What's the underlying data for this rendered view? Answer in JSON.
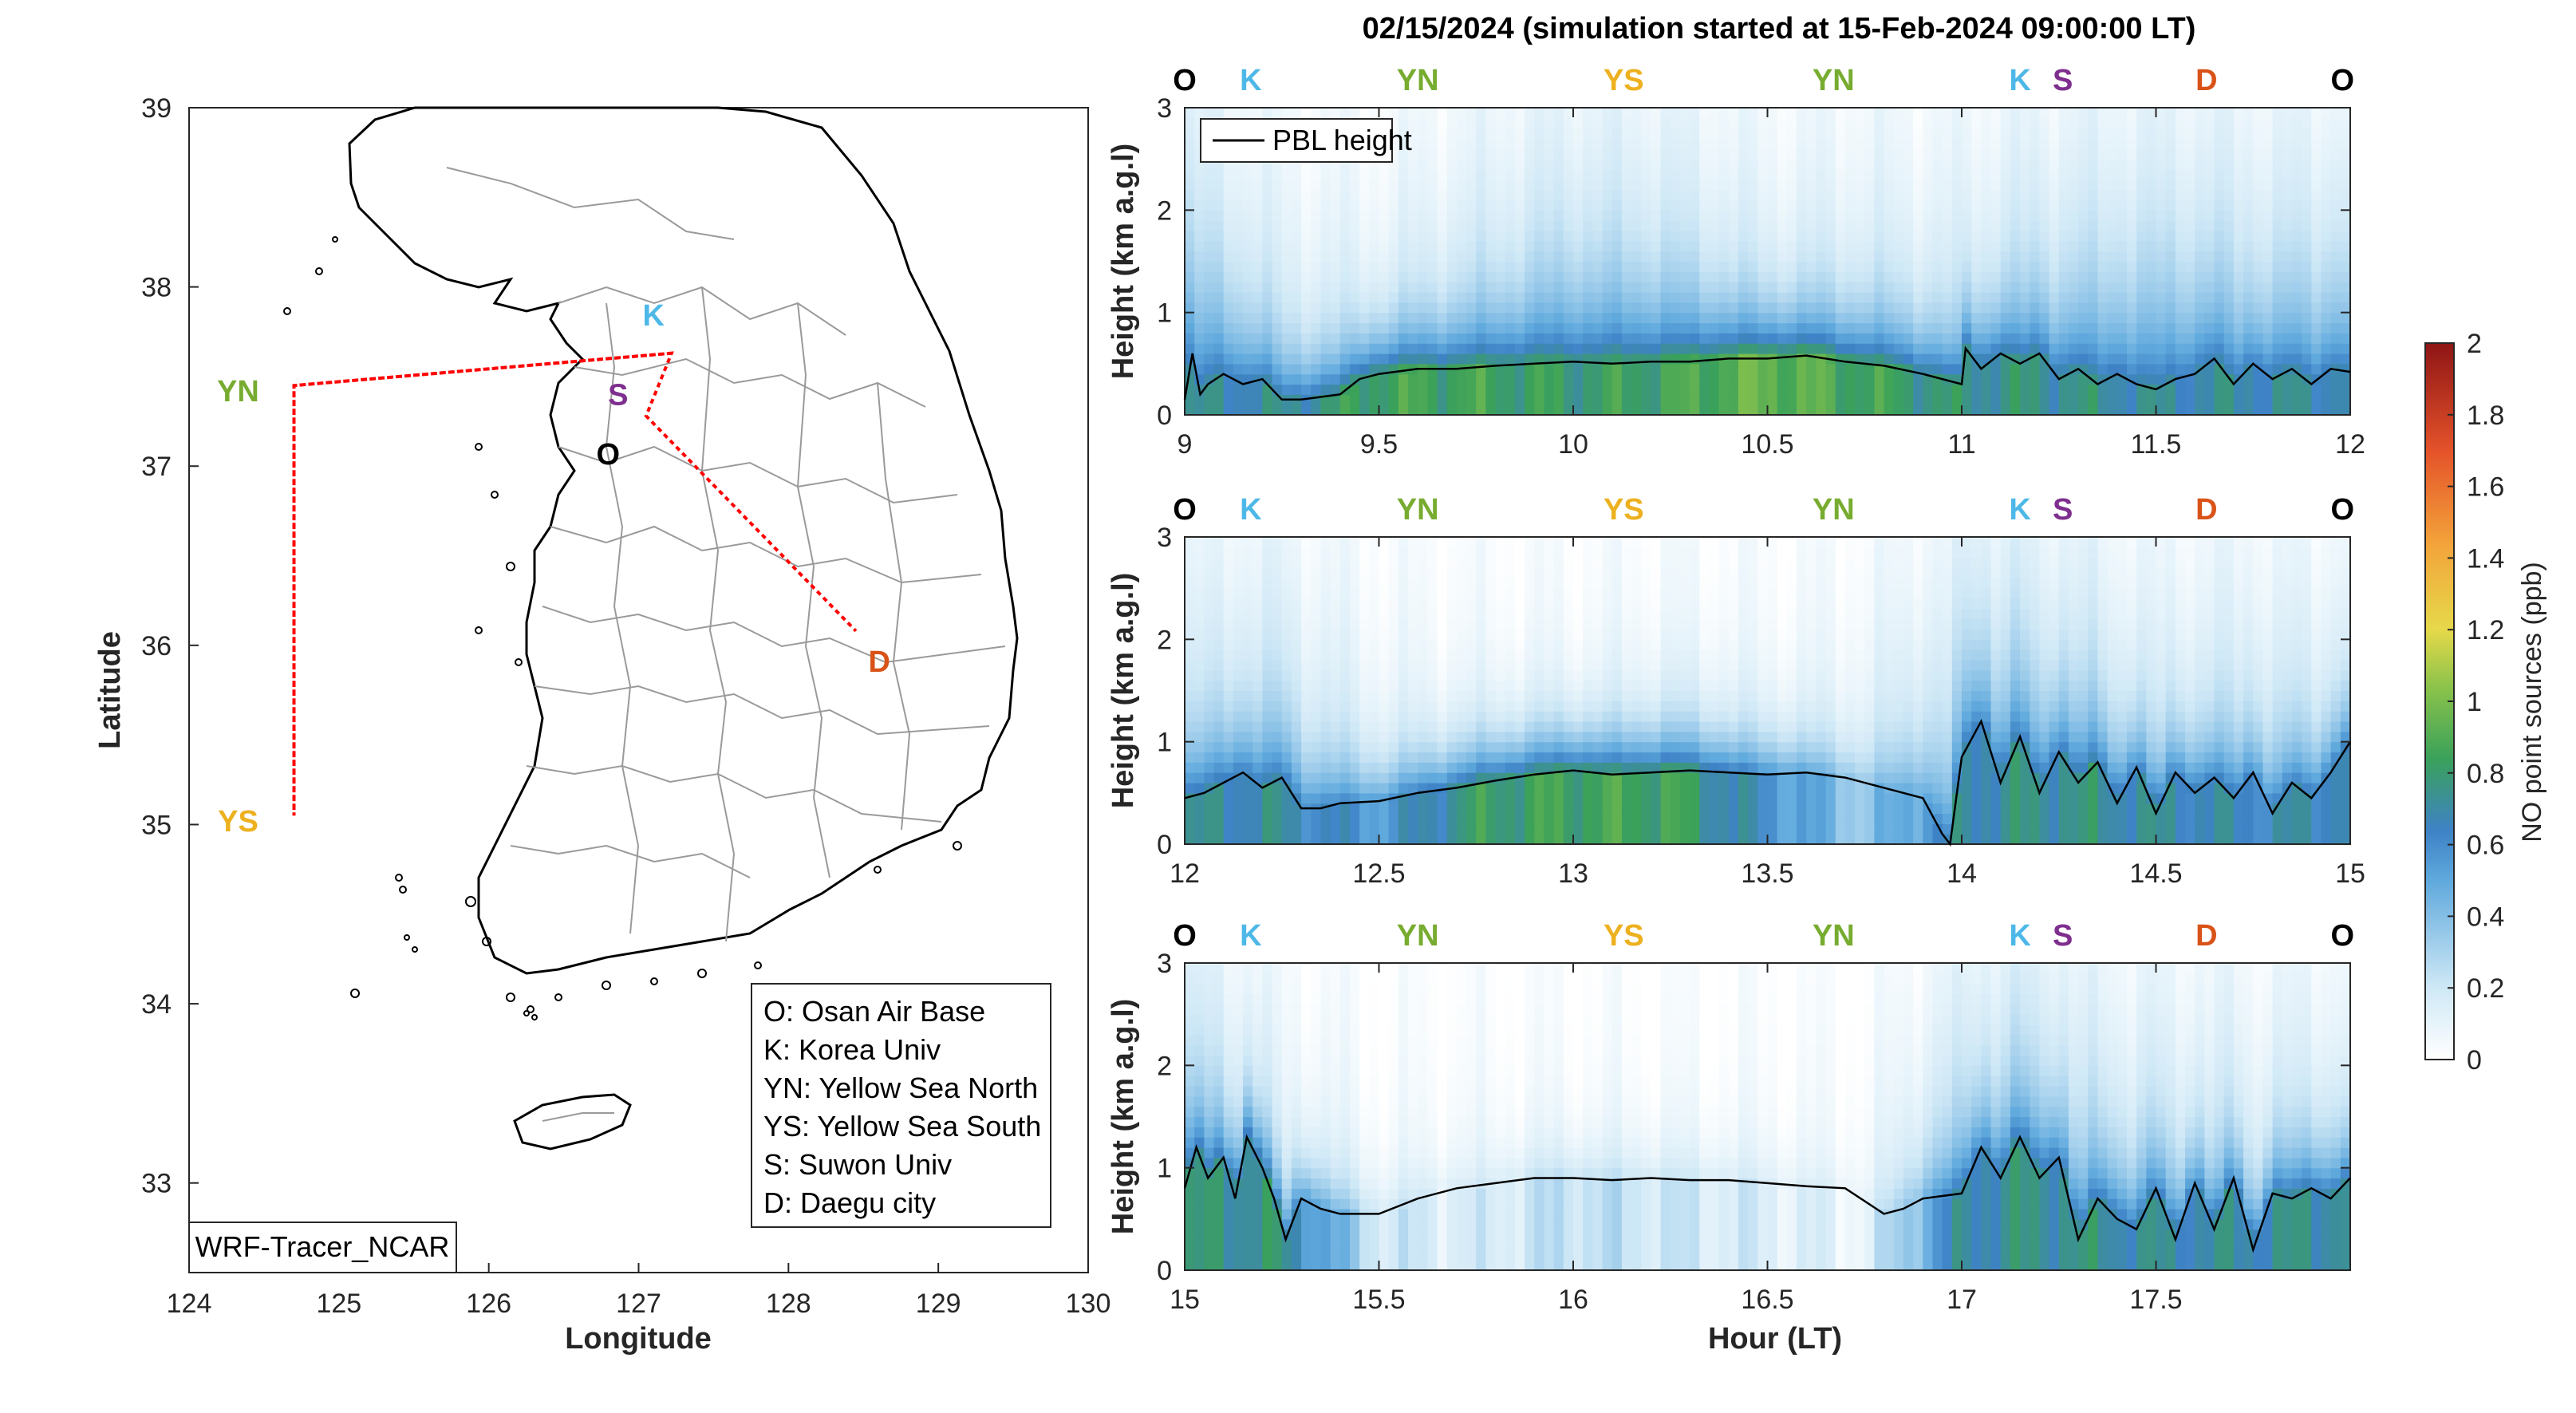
{
  "title": "02/15/2024 (simulation started at 15-Feb-2024 09:00:00 LT)",
  "map": {
    "xlabel": "Longitude",
    "ylabel": "Latitude",
    "xticks": [
      "124",
      "125",
      "126",
      "127",
      "128",
      "129",
      "130"
    ],
    "yticks": [
      "33",
      "34",
      "35",
      "36",
      "37",
      "38",
      "39"
    ],
    "watermark": "WRF-Tracer_NCAR",
    "legend": [
      "O: Osan Air Base",
      "K: Korea Univ",
      "YN: Yellow Sea North",
      "YS: Yellow Sea South",
      "S: Suwon Univ",
      "D: Daegu city"
    ],
    "sites": [
      {
        "id": "O",
        "label": "O",
        "color": "#000000",
        "lon": 126.85,
        "lat": 37.1
      },
      {
        "id": "K",
        "label": "K",
        "color": "#4db8e8",
        "lon": 127.1,
        "lat": 37.74
      },
      {
        "id": "S",
        "label": "S",
        "color": "#7e2f8e",
        "lon": 126.97,
        "lat": 37.32
      },
      {
        "id": "YN",
        "label": "YN",
        "color": "#77ac30",
        "lon": 124.7,
        "lat": 37.45
      },
      {
        "id": "YS",
        "label": "YS",
        "color": "#edb120",
        "lon": 124.7,
        "lat": 35.05
      },
      {
        "id": "D",
        "label": "D",
        "color": "#d95319",
        "lon": 128.5,
        "lat": 35.92
      }
    ],
    "flight_track": [
      [
        127.22,
        37.63
      ],
      [
        124.7,
        37.45
      ],
      [
        124.7,
        35.05
      ],
      [
        124.7,
        37.45
      ],
      [
        127.22,
        37.63
      ],
      [
        127.05,
        37.28
      ],
      [
        128.45,
        36.08
      ]
    ]
  },
  "colorbar": {
    "label": "NO point sources (ppb)",
    "ticks": [
      "0",
      "0.2",
      "0.4",
      "0.6",
      "0.8",
      "1",
      "1.2",
      "1.4",
      "1.6",
      "1.8",
      "2"
    ],
    "range": [
      0,
      2
    ]
  },
  "panel_ylabel": "Height (km a.g.l)",
  "panel_xlabel": "Hour (LT)",
  "pbl_legend": "PBL height",
  "chart_data": [
    {
      "type": "heatmap",
      "xlim": [
        9,
        12
      ],
      "ylim": [
        0,
        3
      ],
      "xticks": [
        "9",
        "9.5",
        "10",
        "10.5",
        "11",
        "11.5",
        "12"
      ],
      "yticks": [
        "0",
        "1",
        "2",
        "3"
      ],
      "site_markers": [
        {
          "label": "O",
          "x": 9.0
        },
        {
          "label": "K",
          "x": 9.17
        },
        {
          "label": "YN",
          "x": 9.6
        },
        {
          "label": "YS",
          "x": 10.13
        },
        {
          "label": "YN",
          "x": 10.67
        },
        {
          "label": "K",
          "x": 11.15
        },
        {
          "label": "S",
          "x": 11.26
        },
        {
          "label": "D",
          "x": 11.63
        },
        {
          "label": "O",
          "x": 11.98
        }
      ],
      "pbl_height": {
        "name": "PBL height",
        "x": [
          9.0,
          9.02,
          9.04,
          9.06,
          9.1,
          9.15,
          9.2,
          9.25,
          9.3,
          9.4,
          9.45,
          9.5,
          9.6,
          9.7,
          9.8,
          9.9,
          10.0,
          10.1,
          10.2,
          10.3,
          10.4,
          10.5,
          10.6,
          10.7,
          10.8,
          10.9,
          11.0,
          11.01,
          11.05,
          11.1,
          11.15,
          11.2,
          11.25,
          11.3,
          11.35,
          11.4,
          11.45,
          11.5,
          11.55,
          11.6,
          11.65,
          11.7,
          11.75,
          11.8,
          11.85,
          11.9,
          11.95,
          12.0
        ],
        "y": [
          0.15,
          0.6,
          0.2,
          0.3,
          0.4,
          0.3,
          0.35,
          0.15,
          0.15,
          0.2,
          0.35,
          0.4,
          0.45,
          0.45,
          0.48,
          0.5,
          0.52,
          0.5,
          0.52,
          0.52,
          0.55,
          0.55,
          0.58,
          0.52,
          0.48,
          0.4,
          0.3,
          0.65,
          0.45,
          0.6,
          0.5,
          0.6,
          0.35,
          0.45,
          0.3,
          0.4,
          0.3,
          0.25,
          0.35,
          0.4,
          0.55,
          0.3,
          0.5,
          0.35,
          0.45,
          0.3,
          0.45,
          0.42
        ]
      },
      "concentration_profile": {
        "description": "NO (ppb) by time bands: column of [low-layer value, upper-layer value]",
        "x": [
          9.0,
          9.25,
          9.5,
          9.75,
          10.0,
          10.25,
          10.5,
          10.75,
          11.0,
          11.25,
          11.5,
          11.75,
          12.0
        ],
        "surface": [
          0.7,
          0.7,
          0.85,
          0.85,
          0.8,
          0.85,
          0.95,
          0.85,
          0.75,
          0.75,
          0.7,
          0.7,
          0.7
        ],
        "aloft": [
          0.6,
          0.3,
          0.2,
          0.35,
          0.5,
          0.45,
          0.25,
          0.3,
          0.3,
          0.45,
          0.55,
          0.45,
          0.5
        ]
      }
    },
    {
      "type": "heatmap",
      "xlim": [
        12,
        15
      ],
      "ylim": [
        0,
        3
      ],
      "xticks": [
        "12",
        "12.5",
        "13",
        "13.5",
        "14",
        "14.5",
        "15"
      ],
      "yticks": [
        "0",
        "1",
        "2",
        "3"
      ],
      "site_markers": [
        {
          "label": "O",
          "x": 12.0
        },
        {
          "label": "K",
          "x": 12.17
        },
        {
          "label": "YN",
          "x": 12.6
        },
        {
          "label": "YS",
          "x": 13.13
        },
        {
          "label": "YN",
          "x": 13.67
        },
        {
          "label": "K",
          "x": 14.15
        },
        {
          "label": "S",
          "x": 14.26
        },
        {
          "label": "D",
          "x": 14.63
        },
        {
          "label": "O",
          "x": 14.98
        }
      ],
      "pbl_height": {
        "name": "PBL height",
        "x": [
          12.0,
          12.05,
          12.1,
          12.15,
          12.2,
          12.25,
          12.3,
          12.35,
          12.4,
          12.5,
          12.6,
          12.7,
          12.8,
          12.9,
          13.0,
          13.1,
          13.2,
          13.3,
          13.4,
          13.5,
          13.6,
          13.7,
          13.8,
          13.9,
          13.95,
          13.97,
          14.0,
          14.05,
          14.1,
          14.15,
          14.2,
          14.25,
          14.3,
          14.35,
          14.4,
          14.45,
          14.5,
          14.55,
          14.6,
          14.65,
          14.7,
          14.75,
          14.8,
          14.85,
          14.9,
          14.95,
          15.0
        ],
        "y": [
          0.45,
          0.5,
          0.6,
          0.7,
          0.55,
          0.65,
          0.35,
          0.35,
          0.4,
          0.42,
          0.5,
          0.55,
          0.62,
          0.68,
          0.72,
          0.68,
          0.7,
          0.72,
          0.7,
          0.68,
          0.7,
          0.65,
          0.55,
          0.45,
          0.1,
          0.0,
          0.85,
          1.2,
          0.6,
          1.05,
          0.5,
          0.9,
          0.6,
          0.8,
          0.4,
          0.75,
          0.3,
          0.7,
          0.5,
          0.65,
          0.45,
          0.7,
          0.3,
          0.6,
          0.45,
          0.7,
          1.0
        ]
      },
      "concentration_profile": {
        "description": "NO (ppb) by time bands: column of [low-layer value, upper-layer value]",
        "x": [
          12.0,
          12.25,
          12.5,
          12.75,
          13.0,
          13.25,
          13.5,
          13.75,
          14.0,
          14.25,
          14.5,
          14.75,
          15.0
        ],
        "surface": [
          0.7,
          0.7,
          0.55,
          0.8,
          0.85,
          0.85,
          0.6,
          0.35,
          0.7,
          0.75,
          0.7,
          0.65,
          0.7
        ],
        "aloft": [
          0.35,
          0.4,
          0.15,
          0.1,
          0.1,
          0.15,
          0.1,
          0.15,
          0.5,
          0.45,
          0.3,
          0.35,
          0.3
        ]
      }
    },
    {
      "type": "heatmap",
      "xlim": [
        15,
        18
      ],
      "ylim": [
        0,
        3
      ],
      "xticks": [
        "15",
        "15.5",
        "16",
        "16.5",
        "17",
        "17.5"
      ],
      "yticks": [
        "0",
        "1",
        "2",
        "3"
      ],
      "site_markers": [
        {
          "label": "O",
          "x": 15.0
        },
        {
          "label": "K",
          "x": 15.17
        },
        {
          "label": "YN",
          "x": 15.6
        },
        {
          "label": "YS",
          "x": 16.13
        },
        {
          "label": "YN",
          "x": 16.67
        },
        {
          "label": "K",
          "x": 17.15
        },
        {
          "label": "S",
          "x": 17.26
        },
        {
          "label": "D",
          "x": 17.63
        },
        {
          "label": "O",
          "x": 17.98
        }
      ],
      "pbl_height": {
        "name": "PBL height",
        "x": [
          15.0,
          15.03,
          15.06,
          15.1,
          15.13,
          15.16,
          15.2,
          15.23,
          15.26,
          15.3,
          15.35,
          15.4,
          15.5,
          15.6,
          15.7,
          15.8,
          15.9,
          16.0,
          16.1,
          16.2,
          16.3,
          16.4,
          16.5,
          16.6,
          16.7,
          16.8,
          16.85,
          16.9,
          17.0,
          17.05,
          17.1,
          17.15,
          17.2,
          17.25,
          17.3,
          17.35,
          17.4,
          17.45,
          17.5,
          17.55,
          17.6,
          17.65,
          17.7,
          17.75,
          17.8,
          17.85,
          17.9,
          17.95,
          18.0
        ],
        "y": [
          0.8,
          1.2,
          0.9,
          1.1,
          0.7,
          1.3,
          1.0,
          0.7,
          0.3,
          0.7,
          0.6,
          0.55,
          0.55,
          0.7,
          0.8,
          0.85,
          0.9,
          0.9,
          0.88,
          0.9,
          0.88,
          0.88,
          0.85,
          0.82,
          0.8,
          0.55,
          0.6,
          0.7,
          0.75,
          1.2,
          0.9,
          1.3,
          0.9,
          1.1,
          0.3,
          0.7,
          0.5,
          0.4,
          0.8,
          0.3,
          0.85,
          0.4,
          0.9,
          0.2,
          0.75,
          0.7,
          0.8,
          0.7,
          0.9
        ]
      },
      "concentration_profile": {
        "description": "NO (ppb) by time bands: column of [low-layer value, upper-layer value]",
        "x": [
          15.0,
          15.25,
          15.5,
          15.75,
          16.0,
          16.25,
          16.5,
          16.75,
          17.0,
          17.25,
          17.5,
          17.75,
          18.0
        ],
        "surface": [
          0.75,
          0.75,
          0.2,
          0.15,
          0.25,
          0.2,
          0.15,
          0.1,
          0.7,
          0.75,
          0.7,
          0.7,
          0.75
        ],
        "aloft": [
          0.45,
          0.2,
          0.05,
          0.05,
          0.05,
          0.05,
          0.05,
          0.05,
          0.4,
          0.45,
          0.35,
          0.3,
          0.3
        ]
      }
    }
  ]
}
